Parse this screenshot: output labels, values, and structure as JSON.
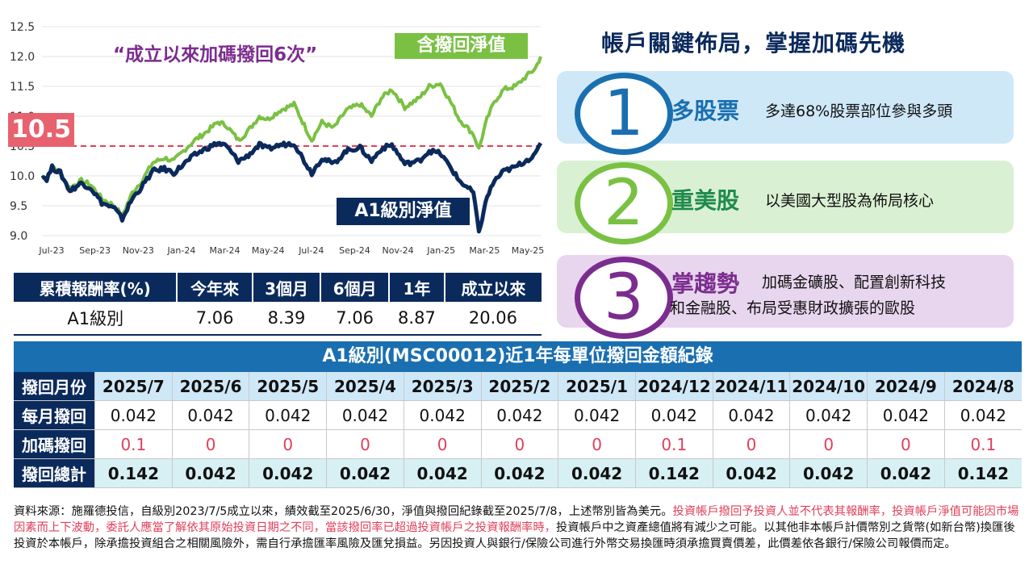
{
  "chart_data": {
    "type": "line",
    "title": "",
    "xlabel": "",
    "ylabel": "",
    "ylim": [
      9.0,
      12.5
    ],
    "y_ticks": [
      "12.5",
      "12.0",
      "11.5",
      "11.0",
      "10.5",
      "10.0",
      "9.5",
      "9.0"
    ],
    "x_ticks": [
      "Jul-23",
      "Sep-23",
      "Nov-23",
      "Jan-24",
      "Mar-24",
      "May-24",
      "Jul-24",
      "Sep-24",
      "Nov-24",
      "Jan-25",
      "Mar-25",
      "May-25"
    ],
    "x_range": [
      "2023-07-05",
      "2025-07-08"
    ],
    "reference_line": {
      "value": 10.5,
      "label": "10.5",
      "color": "#e0405a",
      "style": "dashed"
    },
    "grid": "horizontal",
    "annotation": "“成立以來加碼撥回6次”",
    "series": [
      {
        "name": "含撥回淨值",
        "color": "#7ac143",
        "points": [
          [
            "2023-07-05",
            10.0
          ],
          [
            "2023-07-12",
            9.95
          ],
          [
            "2023-07-20",
            10.14
          ],
          [
            "2023-08-01",
            10.05
          ],
          [
            "2023-08-15",
            9.8
          ],
          [
            "2023-09-01",
            9.92
          ],
          [
            "2023-09-15",
            9.85
          ],
          [
            "2023-10-01",
            9.62
          ],
          [
            "2023-10-20",
            9.5
          ],
          [
            "2023-10-31",
            9.33
          ],
          [
            "2023-11-15",
            9.72
          ],
          [
            "2023-12-01",
            9.95
          ],
          [
            "2023-12-15",
            10.22
          ],
          [
            "2024-01-01",
            10.3
          ],
          [
            "2024-01-15",
            10.25
          ],
          [
            "2024-02-01",
            10.45
          ],
          [
            "2024-02-15",
            10.6
          ],
          [
            "2024-03-01",
            10.72
          ],
          [
            "2024-03-20",
            10.9
          ],
          [
            "2024-04-01",
            10.85
          ],
          [
            "2024-04-19",
            10.6
          ],
          [
            "2024-05-01",
            10.72
          ],
          [
            "2024-05-20",
            11.0
          ],
          [
            "2024-06-01",
            10.95
          ],
          [
            "2024-06-20",
            11.1
          ],
          [
            "2024-07-10",
            11.2
          ],
          [
            "2024-07-25",
            10.85
          ],
          [
            "2024-08-05",
            10.6
          ],
          [
            "2024-08-20",
            10.9
          ],
          [
            "2024-09-06",
            10.8
          ],
          [
            "2024-09-25",
            11.1
          ],
          [
            "2024-10-15",
            11.2
          ],
          [
            "2024-11-01",
            11.0
          ],
          [
            "2024-11-15",
            11.3
          ],
          [
            "2024-12-01",
            11.45
          ],
          [
            "2024-12-20",
            11.15
          ],
          [
            "2025-01-10",
            11.3
          ],
          [
            "2025-01-25",
            11.5
          ],
          [
            "2025-02-10",
            11.55
          ],
          [
            "2025-02-25",
            11.25
          ],
          [
            "2025-03-10",
            10.95
          ],
          [
            "2025-03-31",
            10.7
          ],
          [
            "2025-04-08",
            10.45
          ],
          [
            "2025-04-20",
            10.95
          ],
          [
            "2025-05-01",
            11.25
          ],
          [
            "2025-05-15",
            11.45
          ],
          [
            "2025-06-01",
            11.5
          ],
          [
            "2025-06-15",
            11.65
          ],
          [
            "2025-06-30",
            11.8
          ],
          [
            "2025-07-08",
            12.0
          ]
        ]
      },
      {
        "name": "A1級別淨值",
        "color": "#0b2a5c",
        "points": [
          [
            "2023-07-05",
            10.0
          ],
          [
            "2023-07-12",
            9.95
          ],
          [
            "2023-07-20",
            10.14
          ],
          [
            "2023-08-01",
            10.05
          ],
          [
            "2023-08-15",
            9.75
          ],
          [
            "2023-09-01",
            9.88
          ],
          [
            "2023-09-15",
            9.8
          ],
          [
            "2023-10-01",
            9.55
          ],
          [
            "2023-10-20",
            9.45
          ],
          [
            "2023-10-31",
            9.28
          ],
          [
            "2023-11-15",
            9.62
          ],
          [
            "2023-12-01",
            9.85
          ],
          [
            "2023-12-15",
            10.08
          ],
          [
            "2024-01-01",
            10.12
          ],
          [
            "2024-01-15",
            10.05
          ],
          [
            "2024-02-01",
            10.22
          ],
          [
            "2024-02-15",
            10.35
          ],
          [
            "2024-03-01",
            10.45
          ],
          [
            "2024-03-20",
            10.55
          ],
          [
            "2024-04-01",
            10.5
          ],
          [
            "2024-04-19",
            10.25
          ],
          [
            "2024-05-01",
            10.32
          ],
          [
            "2024-05-20",
            10.52
          ],
          [
            "2024-06-01",
            10.45
          ],
          [
            "2024-06-20",
            10.52
          ],
          [
            "2024-07-10",
            10.55
          ],
          [
            "2024-07-25",
            10.25
          ],
          [
            "2024-08-05",
            10.05
          ],
          [
            "2024-08-20",
            10.3
          ],
          [
            "2024-09-06",
            10.2
          ],
          [
            "2024-09-25",
            10.42
          ],
          [
            "2024-10-15",
            10.48
          ],
          [
            "2024-11-01",
            10.25
          ],
          [
            "2024-11-15",
            10.45
          ],
          [
            "2024-12-01",
            10.52
          ],
          [
            "2024-12-20",
            10.2
          ],
          [
            "2025-01-10",
            10.25
          ],
          [
            "2025-01-25",
            10.42
          ],
          [
            "2025-02-10",
            10.38
          ],
          [
            "2025-02-25",
            10.15
          ],
          [
            "2025-03-10",
            9.92
          ],
          [
            "2025-03-31",
            9.72
          ],
          [
            "2025-04-08",
            9.05
          ],
          [
            "2025-04-20",
            9.65
          ],
          [
            "2025-05-01",
            9.92
          ],
          [
            "2025-05-15",
            10.08
          ],
          [
            "2025-06-01",
            10.15
          ],
          [
            "2025-06-15",
            10.25
          ],
          [
            "2025-06-30",
            10.35
          ],
          [
            "2025-07-08",
            10.55
          ]
        ]
      }
    ]
  },
  "returns_table": {
    "header": "累積報酬率(%)",
    "columns": [
      "今年來",
      "3個月",
      "6個月",
      "1年",
      "成立以來"
    ],
    "row_label": "A1級別",
    "values": [
      "7.06",
      "8.39",
      "7.06",
      "8.87",
      "20.06"
    ]
  },
  "panel": {
    "title": "帳戶關鍵佈局，掌握加碼先機",
    "cards": [
      {
        "number": "1",
        "title": "多股票",
        "desc": "多達68%股票部位參與多頭",
        "desc2": "",
        "bg": "#cfe8f8",
        "accent": "#1a6fb0",
        "title_color": "#1a6fb0"
      },
      {
        "number": "2",
        "title": "重美股",
        "desc": "以美國大型股為佈局核心",
        "desc2": "",
        "bg": "#d9f0d2",
        "accent": "#7ac143",
        "title_color": "#1f8a4c"
      },
      {
        "number": "3",
        "title": "掌趨勢",
        "desc": "加碼金礦股、配置創新科技",
        "desc2": "和金融股、布局受惠財政擴張的歐股",
        "bg": "#e8d5ee",
        "accent": "#7b2d8e",
        "title_color": "#7b2d8e"
      }
    ]
  },
  "distribution": {
    "title": "A1級別(MSC00012)近1年每單位撥回金額紀錄",
    "row_labels": {
      "month": "撥回月份",
      "monthly": "每月撥回",
      "bonus": "加碼撥回",
      "total": "撥回總計"
    },
    "months": [
      "2025/7",
      "2025/6",
      "2025/5",
      "2025/4",
      "2025/3",
      "2025/2",
      "2025/1",
      "2024/12",
      "2024/11",
      "2024/10",
      "2024/9",
      "2024/8"
    ],
    "monthly": [
      "0.042",
      "0.042",
      "0.042",
      "0.042",
      "0.042",
      "0.042",
      "0.042",
      "0.042",
      "0.042",
      "0.042",
      "0.042",
      "0.042"
    ],
    "bonus": [
      "0.1",
      "0",
      "0",
      "0",
      "0",
      "0",
      "0",
      "0.1",
      "0",
      "0",
      "0",
      "0.1"
    ],
    "total": [
      "0.142",
      "0.042",
      "0.042",
      "0.042",
      "0.042",
      "0.042",
      "0.042",
      "0.142",
      "0.042",
      "0.042",
      "0.042",
      "0.142"
    ]
  },
  "footnote": {
    "normal": "資料來源：施羅德投信，自級別2023/7/5成立以來，績效截至2025/6/30，淨值與撥回紀錄截至2025/7/8，上述幣別皆為美元。",
    "red": "投資帳戶撥回予投資人並不代表其報酬率，投資帳戶淨值可能因市場因素而上下波動，委託人應當了解依其原始投資日期之不同，當該撥回率已超過投資帳戶之投資報酬率時，",
    "normal2": "投資帳戶中之資產總值將有減少之可能。以其他非本帳戶計價幣別之貨幣(如新台幣)換匯後投資於本帳戶，除承擔投資組合之相關風險外，需自行承擔匯率風險及匯兌損益。另因投資人與銀行/保險公司進行外幣交易換匯時須承擔買賣價差，此價差依各銀行/保險公司報價而定。"
  }
}
